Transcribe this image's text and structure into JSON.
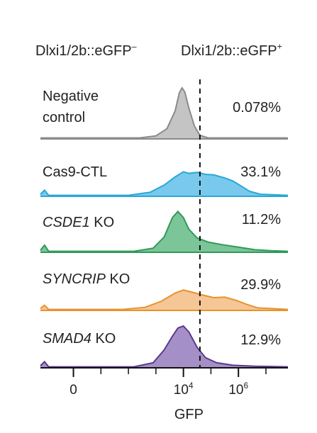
{
  "chart_data": {
    "type": "area",
    "header_left": {
      "base": "Dlxi1/2b::eGFP",
      "sup": "–"
    },
    "header_right": {
      "base": "Dlxi1/2b::eGFP",
      "sup": "+"
    },
    "xlabel": "GFP",
    "xscale": "log10 (biexponential near 0)",
    "xticks": [
      {
        "base": "0",
        "sup": "",
        "pos": 0
      },
      {
        "base": "10",
        "sup": "4",
        "pos": 4
      },
      {
        "base": "10",
        "sup": "6",
        "pos": 6
      }
    ],
    "xlim": [
      -1.2,
      7.8
    ],
    "gate": 4.6,
    "grid": false,
    "series": [
      {
        "label_lines": [
          [
            {
              "text": "Negative",
              "italic": false
            }
          ],
          [
            {
              "text": "control",
              "italic": false
            }
          ]
        ],
        "percent": "0.078%",
        "color": "#8a8a8a",
        "fill": "#c4c4c4",
        "profile": [
          [
            -1.2,
            0.02
          ],
          [
            0,
            0.02
          ],
          [
            2.4,
            0.02
          ],
          [
            3.0,
            0.06
          ],
          [
            3.4,
            0.2
          ],
          [
            3.7,
            0.55
          ],
          [
            3.85,
            0.9
          ],
          [
            3.95,
            1.0
          ],
          [
            4.05,
            0.92
          ],
          [
            4.2,
            0.6
          ],
          [
            4.4,
            0.25
          ],
          [
            4.6,
            0.07
          ],
          [
            4.9,
            0.02
          ],
          [
            7.8,
            0.02
          ]
        ]
      },
      {
        "label_lines": [
          [
            {
              "text": "Cas9-CTL",
              "italic": false
            }
          ]
        ],
        "percent": "33.1%",
        "color": "#2aa7d8",
        "fill": "#79c9ec",
        "profile": [
          [
            -1.2,
            0.04
          ],
          [
            -1.05,
            0.12
          ],
          [
            -0.9,
            0.02
          ],
          [
            2.0,
            0.02
          ],
          [
            2.8,
            0.08
          ],
          [
            3.3,
            0.22
          ],
          [
            3.7,
            0.38
          ],
          [
            4.0,
            0.48
          ],
          [
            4.2,
            0.45
          ],
          [
            4.5,
            0.47
          ],
          [
            4.8,
            0.43
          ],
          [
            5.1,
            0.42
          ],
          [
            5.5,
            0.36
          ],
          [
            5.8,
            0.3
          ],
          [
            6.1,
            0.2
          ],
          [
            6.4,
            0.1
          ],
          [
            6.8,
            0.04
          ],
          [
            7.8,
            0.02
          ]
        ]
      },
      {
        "label_lines": [
          [
            {
              "text": "CSDE1",
              "italic": true
            },
            {
              "text": " KO",
              "italic": false
            }
          ]
        ],
        "percent": "11.2%",
        "color": "#2f9a58",
        "fill": "#7cc598",
        "profile": [
          [
            -1.2,
            0.04
          ],
          [
            -1.05,
            0.14
          ],
          [
            -0.9,
            0.02
          ],
          [
            2.2,
            0.02
          ],
          [
            2.9,
            0.08
          ],
          [
            3.3,
            0.3
          ],
          [
            3.6,
            0.68
          ],
          [
            3.8,
            0.8
          ],
          [
            4.0,
            0.68
          ],
          [
            4.2,
            0.45
          ],
          [
            4.5,
            0.28
          ],
          [
            4.9,
            0.2
          ],
          [
            5.4,
            0.15
          ],
          [
            6.0,
            0.1
          ],
          [
            6.6,
            0.05
          ],
          [
            7.2,
            0.03
          ],
          [
            7.8,
            0.02
          ]
        ]
      },
      {
        "label_lines": [
          [
            {
              "text": "SYNCRIP",
              "italic": true
            },
            {
              "text": " KO",
              "italic": false
            }
          ]
        ],
        "percent": "29.9%",
        "color": "#e8922e",
        "fill": "#f5c696",
        "profile": [
          [
            -1.2,
            0.04
          ],
          [
            -1.05,
            0.1
          ],
          [
            -0.9,
            0.02
          ],
          [
            1.8,
            0.02
          ],
          [
            2.6,
            0.06
          ],
          [
            3.2,
            0.18
          ],
          [
            3.7,
            0.34
          ],
          [
            4.0,
            0.4
          ],
          [
            4.3,
            0.36
          ],
          [
            4.7,
            0.3
          ],
          [
            5.1,
            0.25
          ],
          [
            5.5,
            0.26
          ],
          [
            5.9,
            0.2
          ],
          [
            6.3,
            0.12
          ],
          [
            6.7,
            0.05
          ],
          [
            7.8,
            0.02
          ]
        ]
      },
      {
        "label_lines": [
          [
            {
              "text": "SMAD4",
              "italic": true
            },
            {
              "text": " KO",
              "italic": false
            }
          ]
        ],
        "percent": "12.9%",
        "color": "#5b3a8c",
        "fill": "#a58fc7",
        "profile": [
          [
            -1.2,
            0.04
          ],
          [
            -1.05,
            0.12
          ],
          [
            -0.9,
            0.02
          ],
          [
            2.2,
            0.02
          ],
          [
            2.9,
            0.1
          ],
          [
            3.3,
            0.35
          ],
          [
            3.6,
            0.62
          ],
          [
            3.8,
            0.78
          ],
          [
            4.0,
            0.82
          ],
          [
            4.2,
            0.7
          ],
          [
            4.5,
            0.4
          ],
          [
            4.8,
            0.2
          ],
          [
            5.2,
            0.1
          ],
          [
            5.8,
            0.05
          ],
          [
            6.6,
            0.03
          ],
          [
            7.8,
            0.02
          ]
        ]
      }
    ]
  }
}
